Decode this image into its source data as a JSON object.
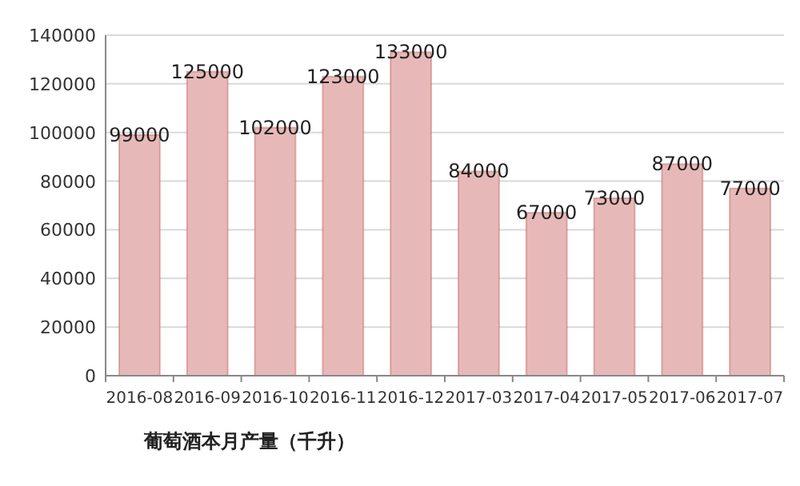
{
  "chart_data": {
    "type": "bar",
    "xlabel": "葡萄酒本月产量（千升）",
    "categories": [
      "2016-08",
      "2016-09",
      "2016-10",
      "2016-11",
      "2016-12",
      "2017-03",
      "2017-04",
      "2017-05",
      "2017-06",
      "2017-07"
    ],
    "values": [
      99000,
      125000,
      102000,
      123000,
      133000,
      84000,
      67000,
      73000,
      87000,
      77000
    ],
    "color": "#e6b9b8",
    "ylim": [
      0,
      140000
    ],
    "yticks": [
      0,
      20000,
      40000,
      60000,
      80000,
      100000,
      120000,
      140000
    ],
    "grid": "y",
    "data_labels": true
  }
}
